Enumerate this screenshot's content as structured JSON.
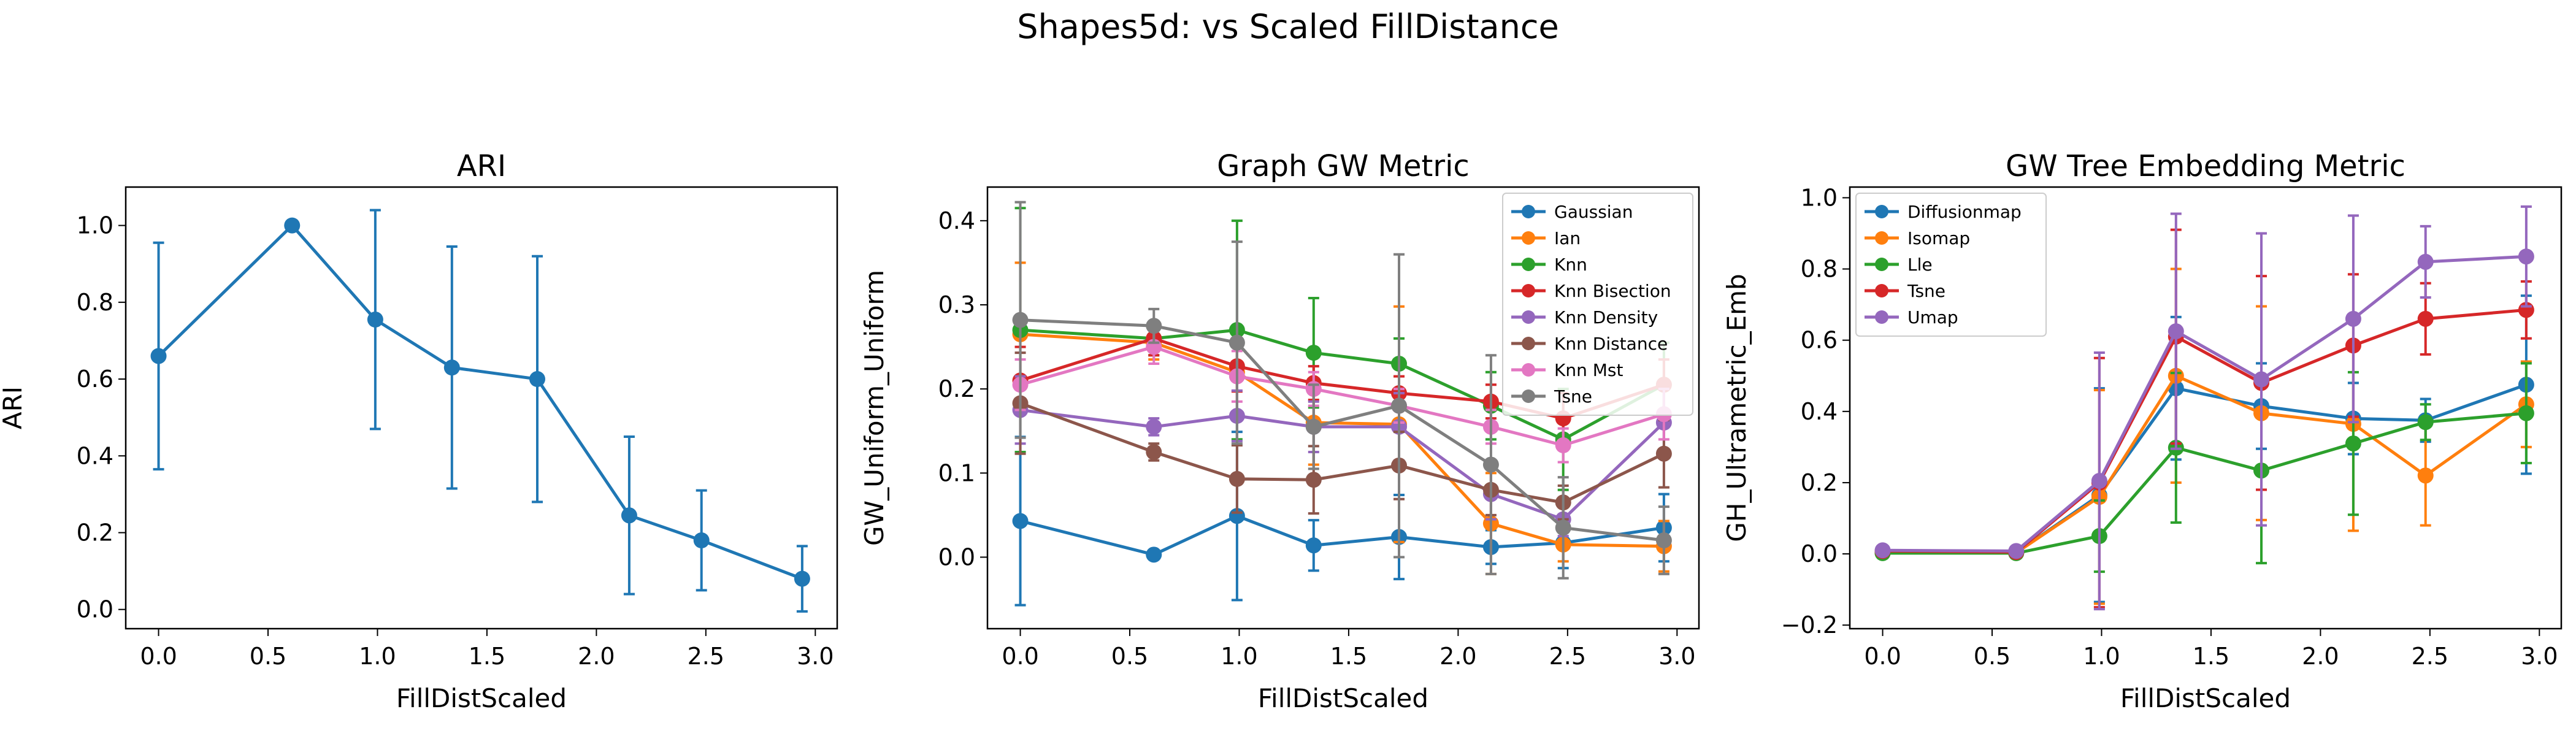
{
  "figure": {
    "suptitle": "Shapes5d: vs Scaled FillDistance"
  },
  "chart_data": [
    {
      "type": "line",
      "title": "ARI",
      "xlabel": "FillDistScaled",
      "ylabel": "ARI",
      "xlim": [
        -0.15,
        3.1
      ],
      "ylim": [
        -0.05,
        1.1
      ],
      "xticks": [
        0.0,
        0.5,
        1.0,
        1.5,
        2.0,
        2.5,
        3.0
      ],
      "xtick_labels": [
        "0.0",
        "0.5",
        "1.0",
        "1.5",
        "2.0",
        "2.5",
        "3.0"
      ],
      "yticks": [
        0.0,
        0.2,
        0.4,
        0.6,
        0.8,
        1.0
      ],
      "ytick_labels": [
        "0.0",
        "0.2",
        "0.4",
        "0.6",
        "0.8",
        "1.0"
      ],
      "legend": null,
      "x": [
        0.0,
        0.61,
        0.99,
        1.34,
        1.73,
        2.15,
        2.48,
        2.94
      ],
      "series": [
        {
          "name": "",
          "color": "#1f77b4",
          "values": [
            0.66,
            1.0,
            0.755,
            0.63,
            0.6,
            0.245,
            0.18,
            0.08
          ],
          "err": [
            0.295,
            0.0,
            0.285,
            0.315,
            0.32,
            0.205,
            0.13,
            0.085
          ]
        }
      ]
    },
    {
      "type": "line",
      "title": "Graph GW Metric",
      "xlabel": "FillDistScaled",
      "ylabel": "GW_Uniform_Uniform",
      "xlim": [
        -0.15,
        3.1
      ],
      "ylim": [
        -0.085,
        0.44
      ],
      "xticks": [
        0.0,
        0.5,
        1.0,
        1.5,
        2.0,
        2.5,
        3.0
      ],
      "xtick_labels": [
        "0.0",
        "0.5",
        "1.0",
        "1.5",
        "2.0",
        "2.5",
        "3.0"
      ],
      "yticks": [
        0.0,
        0.1,
        0.2,
        0.3,
        0.4
      ],
      "ytick_labels": [
        "0.0",
        "0.1",
        "0.2",
        "0.3",
        "0.4"
      ],
      "legend": "upper right",
      "x": [
        0.0,
        0.61,
        0.99,
        1.34,
        1.73,
        2.15,
        2.48,
        2.94
      ],
      "series": [
        {
          "name": "Gaussian",
          "color": "#1f77b4",
          "values": [
            0.043,
            0.003,
            0.049,
            0.014,
            0.024,
            0.012,
            0.017,
            0.035
          ],
          "err": [
            0.1,
            0.0,
            0.1,
            0.03,
            0.05,
            0.02,
            0.03,
            0.04
          ]
        },
        {
          "name": "Ian",
          "color": "#ff7f0e",
          "values": [
            0.265,
            0.255,
            0.22,
            0.16,
            0.158,
            0.04,
            0.015,
            0.013
          ],
          "err": [
            0.085,
            0.02,
            0.05,
            0.05,
            0.14,
            0.06,
            0.02,
            0.03
          ]
        },
        {
          "name": "Knn",
          "color": "#2ca02c",
          "values": [
            0.27,
            0.26,
            0.27,
            0.243,
            0.23,
            0.18,
            0.14,
            0.205
          ],
          "err": [
            0.145,
            0.02,
            0.13,
            0.065,
            0.03,
            0.04,
            0.06,
            0.05
          ]
        },
        {
          "name": "Knn Bisection",
          "color": "#d62728",
          "values": [
            0.21,
            0.26,
            0.227,
            0.207,
            0.195,
            0.185,
            0.165,
            0.205
          ],
          "err": [
            0.04,
            0.02,
            0.03,
            0.02,
            0.02,
            0.02,
            0.03,
            0.03
          ]
        },
        {
          "name": "Knn Density",
          "color": "#9467bd",
          "values": [
            0.175,
            0.155,
            0.168,
            0.155,
            0.155,
            0.075,
            0.045,
            0.16
          ],
          "err": [
            0.04,
            0.01,
            0.03,
            0.03,
            0.04,
            0.03,
            0.02,
            0.04
          ]
        },
        {
          "name": "Knn Distance",
          "color": "#8c564b",
          "values": [
            0.183,
            0.125,
            0.093,
            0.092,
            0.109,
            0.08,
            0.065,
            0.123
          ],
          "err": [
            0.06,
            0.01,
            0.04,
            0.04,
            0.04,
            0.03,
            0.02,
            0.04
          ]
        },
        {
          "name": "Knn Mst",
          "color": "#e377c2",
          "values": [
            0.205,
            0.25,
            0.215,
            0.2,
            0.18,
            0.155,
            0.133,
            0.17
          ],
          "err": [
            0.03,
            0.02,
            0.03,
            0.02,
            0.02,
            0.02,
            0.02,
            0.03
          ]
        },
        {
          "name": "Tsne",
          "color": "#7f7f7f",
          "values": [
            0.282,
            0.275,
            0.255,
            0.155,
            0.18,
            0.11,
            0.035,
            0.02
          ],
          "err": [
            0.14,
            0.02,
            0.12,
            0.05,
            0.18,
            0.13,
            0.06,
            0.04
          ]
        }
      ]
    },
    {
      "type": "line",
      "title": "GW Tree Embedding Metric",
      "xlabel": "FillDistScaled",
      "ylabel": "GH_Ultrametric_Emb",
      "xlim": [
        -0.15,
        3.1
      ],
      "ylim": [
        -0.21,
        1.03
      ],
      "xticks": [
        0.0,
        0.5,
        1.0,
        1.5,
        2.0,
        2.5,
        3.0
      ],
      "xtick_labels": [
        "0.0",
        "0.5",
        "1.0",
        "1.5",
        "2.0",
        "2.5",
        "3.0"
      ],
      "yticks": [
        -0.2,
        0.0,
        0.2,
        0.4,
        0.6,
        0.8,
        1.0
      ],
      "ytick_labels": [
        "−0.2",
        "0.0",
        "0.2",
        "0.4",
        "0.6",
        "0.8",
        "1.0"
      ],
      "legend": "upper left",
      "x": [
        0.0,
        0.61,
        0.99,
        1.34,
        1.73,
        2.15,
        2.48,
        2.94
      ],
      "series": [
        {
          "name": "Diffusionmap",
          "color": "#1f77b4",
          "values": [
            0.003,
            0.003,
            0.165,
            0.465,
            0.415,
            0.38,
            0.375,
            0.475
          ],
          "err": [
            0.01,
            0.01,
            0.3,
            0.2,
            0.12,
            0.1,
            0.06,
            0.25
          ]
        },
        {
          "name": "Isomap",
          "color": "#ff7f0e",
          "values": [
            0.005,
            0.003,
            0.16,
            0.5,
            0.395,
            0.365,
            0.22,
            0.42
          ],
          "err": [
            0.01,
            0.01,
            0.3,
            0.3,
            0.3,
            0.3,
            0.14,
            0.12
          ]
        },
        {
          "name": "Lle",
          "color": "#2ca02c",
          "values": [
            0.002,
            0.002,
            0.05,
            0.298,
            0.234,
            0.31,
            0.37,
            0.395
          ],
          "err": [
            0.01,
            0.01,
            0.1,
            0.21,
            0.26,
            0.2,
            0.05,
            0.14
          ]
        },
        {
          "name": "Tsne",
          "color": "#d62728",
          "values": [
            0.008,
            0.005,
            0.2,
            0.61,
            0.48,
            0.585,
            0.66,
            0.685
          ],
          "err": [
            0.01,
            0.01,
            0.35,
            0.3,
            0.3,
            0.2,
            0.1,
            0.08
          ]
        },
        {
          "name": "Umap",
          "color": "#9467bd",
          "values": [
            0.01,
            0.008,
            0.205,
            0.625,
            0.49,
            0.66,
            0.82,
            0.835
          ],
          "err": [
            0.01,
            0.01,
            0.36,
            0.33,
            0.41,
            0.29,
            0.1,
            0.14
          ]
        }
      ]
    }
  ]
}
